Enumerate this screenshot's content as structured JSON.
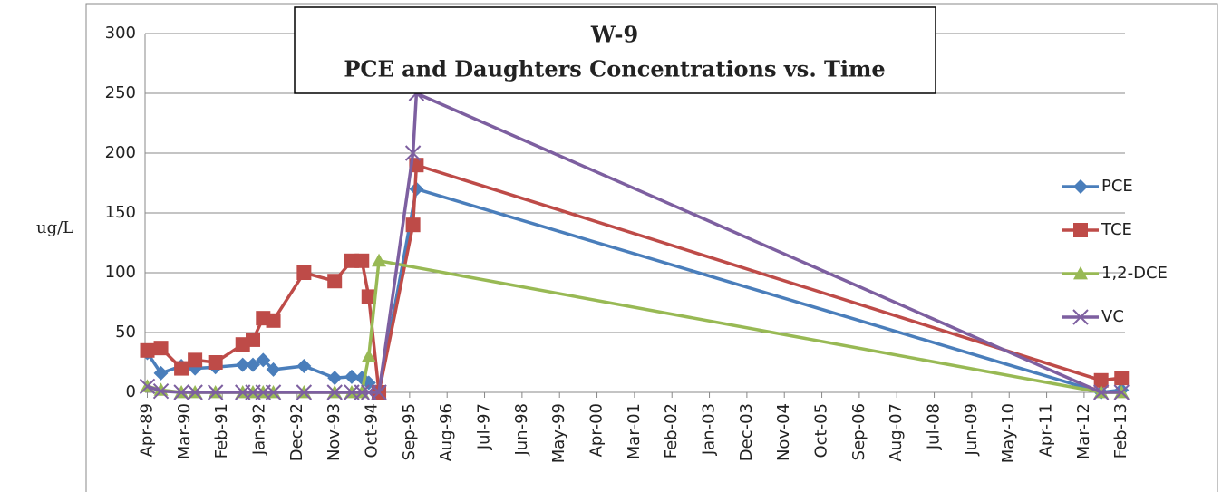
{
  "chart_data": {
    "type": "line",
    "title": "W-9",
    "subtitle": "PCE and Daughters Concentrations vs. Time",
    "ylabel": "ug/L",
    "xlim": [
      "1989-02",
      "2013-03"
    ],
    "xticks": [
      {
        "value": "1989-04",
        "label": "Apr-89"
      },
      {
        "value": "1990-03",
        "label": "Mar-90"
      },
      {
        "value": "1991-02",
        "label": "Feb-91"
      },
      {
        "value": "1992-01",
        "label": "Jan-92"
      },
      {
        "value": "1992-12",
        "label": "Dec-92"
      },
      {
        "value": "1993-11",
        "label": "Nov-93"
      },
      {
        "value": "1994-10",
        "label": "Oct-94"
      },
      {
        "value": "1995-09",
        "label": "Sep-95"
      },
      {
        "value": "1996-08",
        "label": "Aug-96"
      },
      {
        "value": "1997-07",
        "label": "Jul-97"
      },
      {
        "value": "1998-06",
        "label": "Jun-98"
      },
      {
        "value": "1999-05",
        "label": "May-99"
      },
      {
        "value": "2000-04",
        "label": "Apr-00"
      },
      {
        "value": "2001-03",
        "label": "Mar-01"
      },
      {
        "value": "2002-02",
        "label": "Feb-02"
      },
      {
        "value": "2003-01",
        "label": "Jan-03"
      },
      {
        "value": "2003-12",
        "label": "Dec-03"
      },
      {
        "value": "2004-11",
        "label": "Nov-04"
      },
      {
        "value": "2005-10",
        "label": "Oct-05"
      },
      {
        "value": "2006-09",
        "label": "Sep-06"
      },
      {
        "value": "2007-08",
        "label": "Aug-07"
      },
      {
        "value": "2008-07",
        "label": "Jul-08"
      },
      {
        "value": "2009-06",
        "label": "Jun-09"
      },
      {
        "value": "2010-05",
        "label": "May-10"
      },
      {
        "value": "2011-04",
        "label": "Apr-11"
      },
      {
        "value": "2012-03",
        "label": "Mar-12"
      },
      {
        "value": "2013-02",
        "label": "Feb-13"
      }
    ],
    "ylim": [
      0,
      300
    ],
    "yticks": [
      0,
      50,
      100,
      150,
      200,
      250,
      300
    ],
    "grid": true,
    "legend": "right",
    "series": [
      {
        "name": "PCE",
        "color": "#4a7ebb",
        "marker": "diamond",
        "x": [
          "1989-04",
          "1989-08",
          "1990-02",
          "1990-06",
          "1990-12",
          "1991-08",
          "1991-11",
          "1992-02",
          "1992-05",
          "1993-02",
          "1993-11",
          "1994-04",
          "1994-07",
          "1994-09",
          "1994-12",
          "1995-11",
          "2012-08",
          "2013-02"
        ],
        "values": [
          33,
          16,
          22,
          20,
          21,
          23,
          23,
          27,
          19,
          22,
          12,
          13,
          12,
          8,
          0,
          170,
          0,
          2
        ]
      },
      {
        "name": "TCE",
        "color": "#be4b48",
        "marker": "square",
        "x": [
          "1989-04",
          "1989-08",
          "1990-02",
          "1990-06",
          "1990-12",
          "1991-08",
          "1991-11",
          "1992-02",
          "1992-05",
          "1993-02",
          "1993-11",
          "1994-04",
          "1994-07",
          "1994-09",
          "1994-12",
          "1995-10",
          "1995-11",
          "2012-08",
          "2013-02"
        ],
        "values": [
          35,
          37,
          20,
          27,
          25,
          40,
          44,
          62,
          60,
          100,
          93,
          110,
          110,
          80,
          0,
          140,
          190,
          10,
          12
        ]
      },
      {
        "name": "1,2-DCE",
        "color": "#98b954",
        "marker": "triangle",
        "x": [
          "1989-04",
          "1989-08",
          "1990-02",
          "1990-06",
          "1990-12",
          "1991-08",
          "1991-11",
          "1992-02",
          "1992-05",
          "1993-02",
          "1993-11",
          "1994-04",
          "1994-07",
          "1994-09",
          "1994-12",
          "2012-08",
          "2013-02"
        ],
        "values": [
          5,
          2,
          0,
          0,
          0,
          0,
          0,
          0,
          0,
          0,
          0,
          0,
          0,
          30,
          110,
          0,
          0
        ]
      },
      {
        "name": "VC",
        "color": "#7d5fa0",
        "marker": "x",
        "x": [
          "1989-04",
          "1989-08",
          "1990-02",
          "1990-06",
          "1990-12",
          "1991-08",
          "1991-11",
          "1992-02",
          "1992-05",
          "1993-02",
          "1993-11",
          "1994-04",
          "1994-07",
          "1994-09",
          "1994-12",
          "1995-10",
          "1995-11",
          "2012-08",
          "2013-02"
        ],
        "values": [
          5,
          1,
          0,
          0,
          0,
          0,
          0,
          0,
          0,
          0,
          0,
          0,
          0,
          0,
          0,
          200,
          250,
          0,
          0
        ]
      }
    ]
  }
}
